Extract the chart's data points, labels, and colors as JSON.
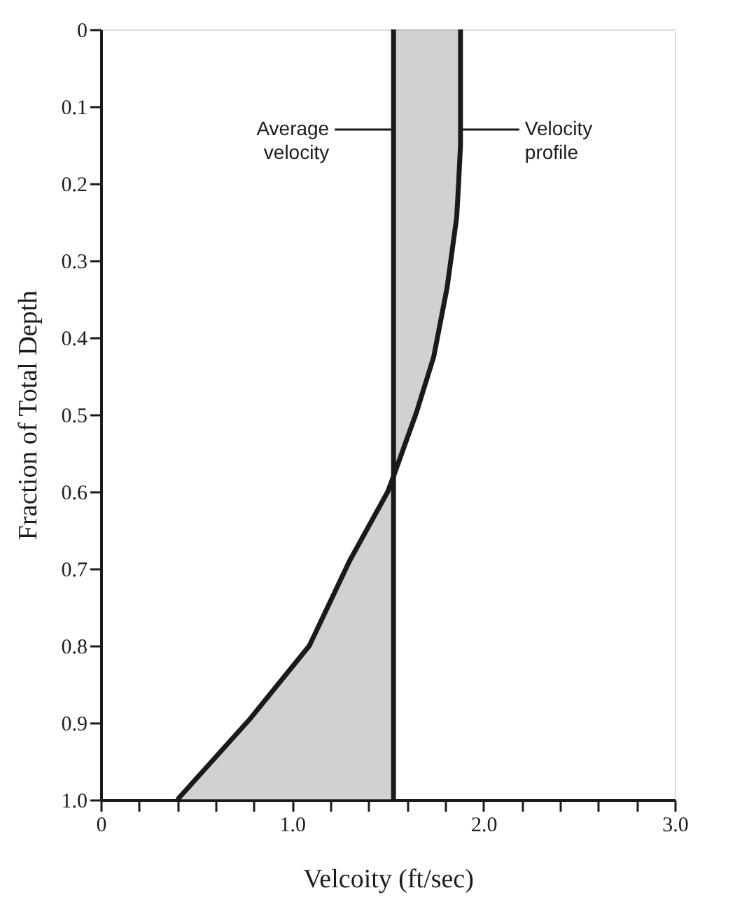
{
  "chart_data": {
    "type": "line",
    "xlabel": "Velcoity (ft/sec)",
    "ylabel": "Fraction of Total Depth",
    "series": [
      {
        "color": "#1a1a1a",
        "x": [
          1.88,
          1.88,
          1.87,
          1.86,
          1.81,
          1.74,
          1.65,
          1.53,
          1.5,
          1.3,
          1.09,
          0.78,
          0.4
        ],
        "values": [
          0,
          0.15,
          0.2,
          0.244,
          0.335,
          0.425,
          0.497,
          0.58,
          0.6,
          0.69,
          0.8,
          0.895,
          1.0
        ]
      }
    ],
    "ref_lines": [
      {
        "axis": "x",
        "value": 1.53,
        "color": "#1a1a1a"
      }
    ],
    "annotations": [
      "Average velocity",
      "Velocity profile"
    ],
    "xlim": [
      0,
      3.0
    ],
    "xticks": [
      0,
      {
        "value": 0.2,
        "label": null
      },
      {
        "value": 0.4,
        "label": null
      },
      {
        "value": 0.6,
        "label": null
      },
      {
        "value": 0.8,
        "label": null
      },
      {
        "value": 1.0,
        "label": "1.0"
      },
      {
        "value": 1.2,
        "label": null
      },
      {
        "value": 1.4,
        "label": null
      },
      {
        "value": 1.6,
        "label": null
      },
      {
        "value": 1.8,
        "label": null
      },
      {
        "value": 2.0,
        "label": "2.0"
      },
      {
        "value": 2.2,
        "label": null
      },
      {
        "value": 2.4,
        "label": null
      },
      {
        "value": 2.6,
        "label": null
      },
      {
        "value": 2.8,
        "label": null
      },
      {
        "value": 3.0,
        "label": "3.0"
      }
    ],
    "ylim": [
      1.0,
      0
    ],
    "yticks": [
      0,
      0.1,
      0.2,
      0.3,
      0.4,
      0.5,
      0.6,
      0.7,
      0.8,
      0.9,
      {
        "value": 1.0,
        "label": "1.0"
      }
    ],
    "grid": false,
    "marker": "none",
    "line_style": "solid"
  }
}
